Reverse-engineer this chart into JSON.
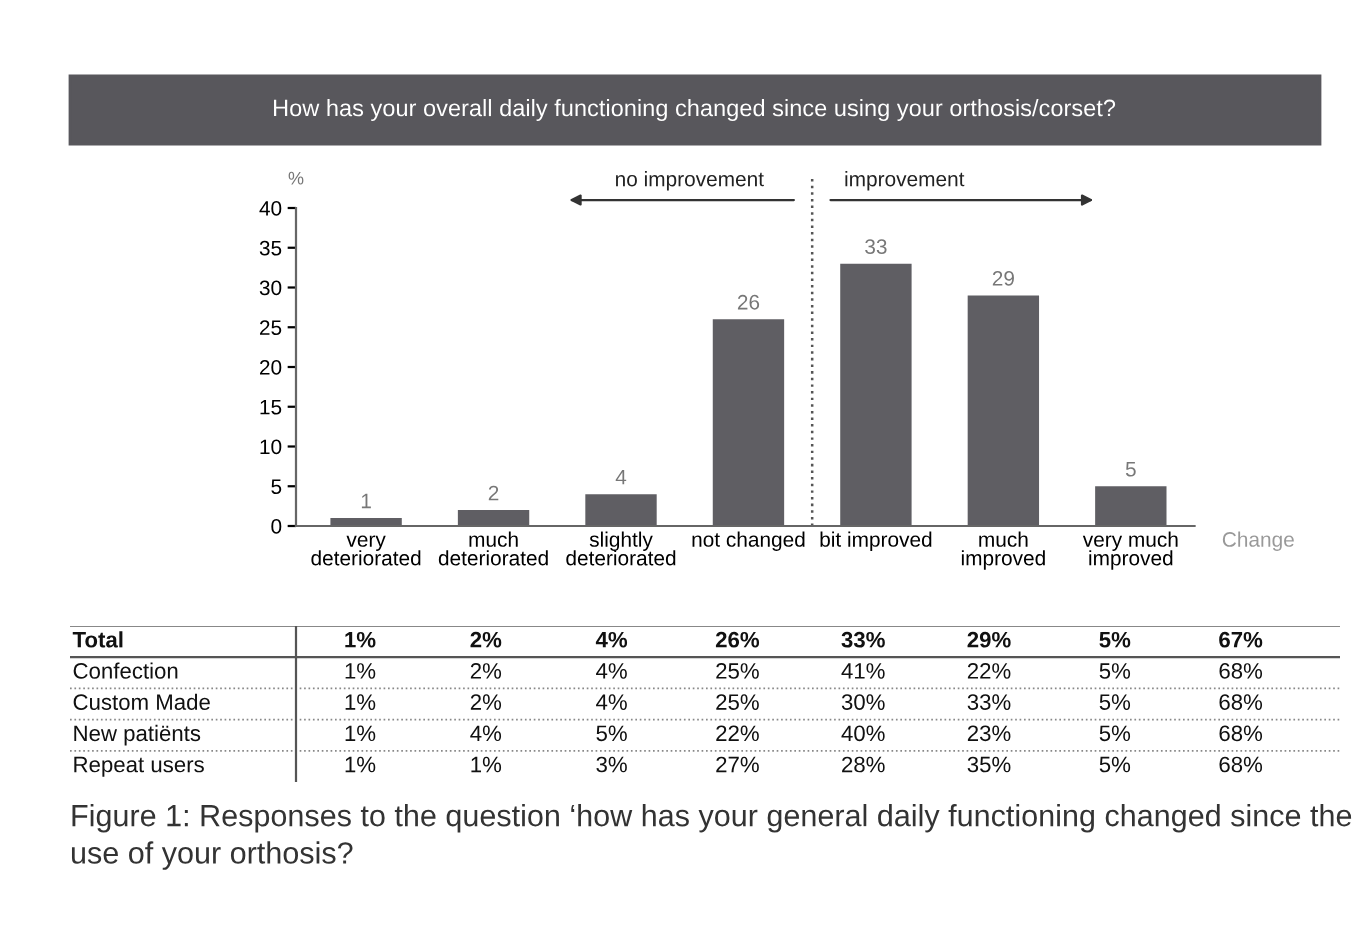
{
  "chart_data": [
    {
      "type": "bar",
      "title": "How has your overall daily functioning changed since using your orthosis/corset?",
      "ylabel": "%",
      "categories": [
        "very\ndeteriorated",
        "much\ndeteriorated",
        "slightly\ndeteriorated",
        "not changed",
        "bit improved",
        "much\nimproved",
        "very much\nimproved",
        "Change"
      ],
      "values": [
        1,
        2,
        4,
        26,
        33,
        29,
        5,
        null
      ],
      "color": "#5f5e63",
      "data_labels": true,
      "ylim": [
        0,
        40
      ],
      "yticks": [
        0,
        5,
        10,
        15,
        20,
        25,
        30,
        35,
        40
      ],
      "grid": false,
      "annotations": [
        "no improvement",
        "improvement",
        "Figure 1: Responses to the question ‘how has your general daily functioning changed since the use of your orthosis?"
      ]
    },
    {
      "type": "other",
      "categories": [
        null,
        null,
        null,
        null,
        null,
        null,
        null,
        null
      ],
      "y_categories": [
        "Total",
        "Confection",
        "Custom Made",
        "New patiënts",
        "Repeat users"
      ],
      "cell_labels": [
        [
          "1%",
          "2%",
          "4%",
          "26%",
          "33%",
          "29%",
          "5%",
          "67%"
        ],
        [
          "1%",
          "2%",
          "4%",
          "25%",
          "41%",
          "22%",
          "5%",
          "68%"
        ],
        [
          "1%",
          "2%",
          "4%",
          "25%",
          "30%",
          "33%",
          "5%",
          "68%"
        ],
        [
          "1%",
          "4%",
          "5%",
          "22%",
          "40%",
          "23%",
          "5%",
          "68%"
        ],
        [
          "1%",
          "1%",
          "3%",
          "27%",
          "28%",
          "35%",
          "5%",
          "68%"
        ]
      ]
    }
  ]
}
